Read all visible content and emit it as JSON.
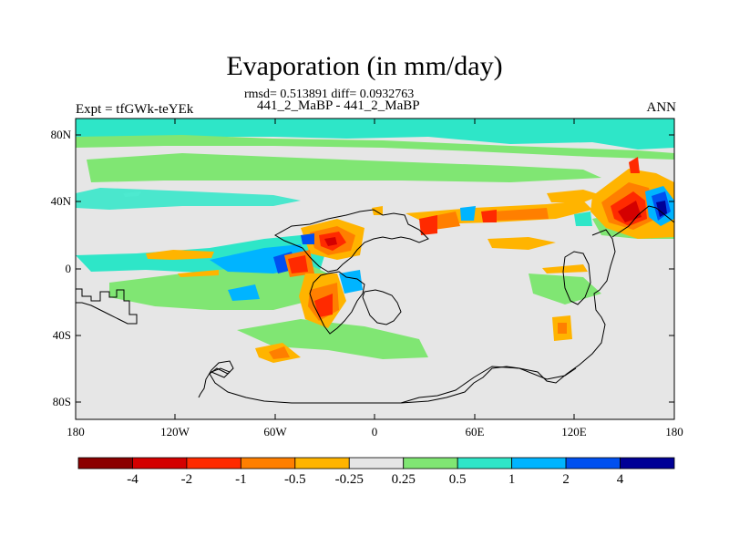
{
  "title": "Evaporation (in mm/day)",
  "stats": "rmsd= 0.513891 diff= 0.0932763",
  "case_line": "441_2_MaBP - 441_2_MaBP",
  "left_label": "Expt = tfGWk-teYEk",
  "right_label": "ANN",
  "map": {
    "projection": "cylindrical-equidistant",
    "lat_range": [
      -90,
      90
    ],
    "lon_range": [
      -180,
      180
    ],
    "y_ticks": [
      "80N",
      "40N",
      "0",
      "40S",
      "80S"
    ],
    "x_ticks": [
      "180",
      "120W",
      "60W",
      "0",
      "60E",
      "120E",
      "180"
    ],
    "background_color": "#e6e6e6"
  },
  "colorbar": {
    "labels": [
      "-4",
      "-2",
      "-1",
      "-0.5",
      "-0.25",
      "0.25",
      "0.5",
      "1",
      "2",
      "4"
    ],
    "colors": [
      "#8b0000",
      "#d40000",
      "#ff2a00",
      "#ff7f00",
      "#ffb400",
      "#e6e6e6",
      "#80e673",
      "#2ee6c8",
      "#00b4ff",
      "#0050f0",
      "#000096"
    ]
  }
}
